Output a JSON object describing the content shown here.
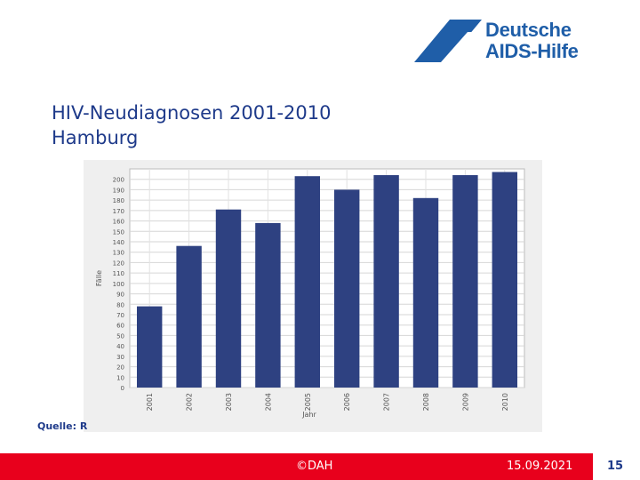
{
  "logo": {
    "line1": "Deutsche",
    "line2": "AIDS-Hilfe",
    "color": "#1f5ea8"
  },
  "slide": {
    "title_line1": "HIV-Neudiagnosen 2001-2010",
    "title_line2": "Hamburg",
    "source": "Quelle: R"
  },
  "chart_data": {
    "type": "bar",
    "categories": [
      "2001",
      "2002",
      "2003",
      "2004",
      "2005",
      "2006",
      "2007",
      "2008",
      "2009",
      "2010"
    ],
    "values": [
      78,
      136,
      171,
      158,
      203,
      190,
      204,
      182,
      204,
      207
    ],
    "xlabel": "Jahr",
    "ylabel": "Fälle",
    "ylim": [
      0,
      210
    ],
    "yticks": [
      0,
      10,
      20,
      30,
      40,
      50,
      60,
      70,
      80,
      90,
      100,
      110,
      120,
      130,
      140,
      150,
      160,
      170,
      180,
      190,
      200
    ],
    "grid": true,
    "bar_color": "#2e4181"
  },
  "footer": {
    "copyright": "©DAH",
    "date": "15.09.2021",
    "page": "15",
    "bar_color": "#e8001c"
  }
}
